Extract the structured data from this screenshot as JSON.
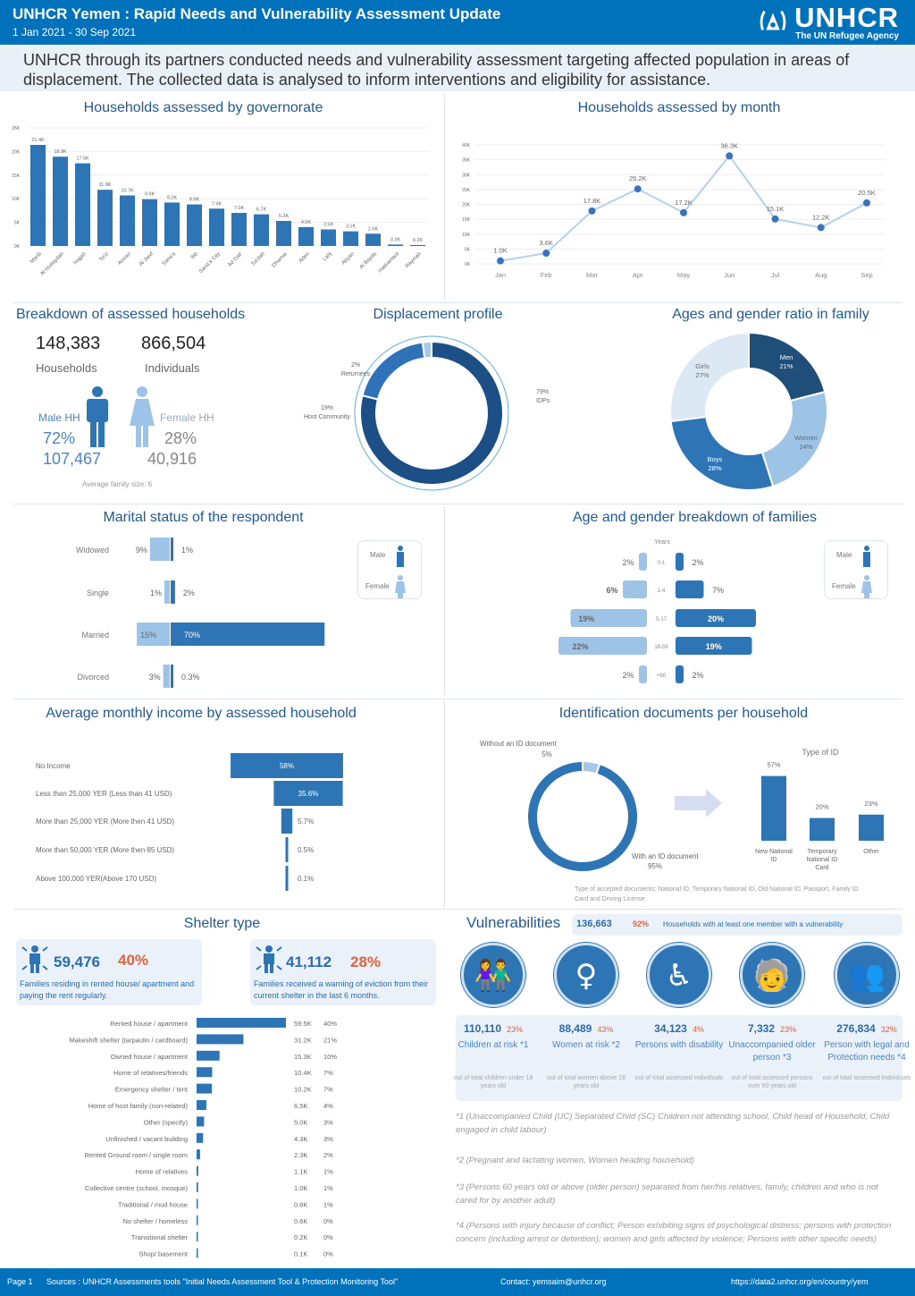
{
  "header": {
    "title": "UNHCR Yemen : Rapid Needs and Vulnerability Assessment Update",
    "date": "1 Jan 2021 - 30 Sep 2021",
    "logo_text": "UNHCR",
    "logo_sub": "The UN Refugee Agency"
  },
  "intro": "UNHCR through its partners conducted needs and vulnerability assessment targeting affected population in areas of displacement. The collected data is analysed to inform interventions and eligibility for assistance.",
  "sections": {
    "gov": "Households assessed by governorate",
    "month": "Households assessed by month",
    "breakdown": "Breakdown of assessed households",
    "displacement": "Displacement profile",
    "ages": "Ages and gender ratio in family",
    "marital": "Marital status of the respondent",
    "agegender": "Age and gender breakdown of families",
    "income": "Average monthly income by assessed household",
    "id": "Identification documents per household",
    "shelter": "Shelter type",
    "vuln": "Vulnerabilities"
  },
  "breakdown": {
    "households": "148,383",
    "households_label": "Households",
    "individuals": "866,504",
    "individuals_label": "Individuals",
    "male_label": "Male HH",
    "male_pct": "72%",
    "male_count": "107,467",
    "female_label": "Female HH",
    "female_pct": "28%",
    "female_count": "40,916",
    "avg_family": "Average family size: 6"
  },
  "legend": {
    "male": "Male",
    "female": "Female"
  },
  "shelter_cards": [
    {
      "num": "59,476",
      "pct": "40%",
      "desc": "Families residing in rented house/ apartment and paying the rent regularly."
    },
    {
      "num": "41,112",
      "pct": "28%",
      "desc": "Families received a warning of eviction from their current shelter in the last 6 months."
    }
  ],
  "vulnerabilities": {
    "total": "136,663",
    "pct": "92%",
    "desc": "Households with at least one member with a vulnerability",
    "items": [
      {
        "icon": "children-icon",
        "num": "110,110",
        "pct": "23%",
        "label": "Children at risk *1",
        "note": "out of total children under 18 years old"
      },
      {
        "icon": "woman-icon",
        "num": "88,489",
        "pct": "43%",
        "label": "Women at risk *2",
        "note": "out of total women above 18 years old"
      },
      {
        "icon": "wheelchair-icon",
        "num": "34,123",
        "pct": "4%",
        "label": "Persons with disability",
        "note": "out of total assessed individuals"
      },
      {
        "icon": "elderly-icon",
        "num": "7,332",
        "pct": "23%",
        "label": "Unaccompanied older person *3",
        "note": "out of total assessed persons over 60 years old"
      },
      {
        "icon": "group-icon",
        "num": "276,834",
        "pct": "32%",
        "label": "Person with legal and Protection needs *4",
        "note": "out of total assessed individuals"
      }
    ],
    "footnotes": [
      "*1 (Unaccompanied Child (UC) Separated Child (SC) Children not attending school, Child head of Household, Child engaged in child labour)",
      "*2 (Pregnant and lactating women, Women heading household)",
      "*3 (Persons 60 years old or above (older person) separated from her/his relatives, family, children and who is not cared for by another adult)",
      "*4 (Persons with injury because of conflict; Person exhibiting signs of psychological distress; persons with protection concern (including arrest or detention); women and girls affected by violence; Persons with other specific needs)"
    ]
  },
  "id_note": "Type of accepted documents: National ID, Temporary National ID, Old National ID, Passport, Family ID Card and Driving License",
  "footer": {
    "page": "Page 1",
    "sources": "Sources : UNHCR Assessments tools \"Initial Needs Assessment Tool & Protection Monitoring Tool\"",
    "contact": "Contact: yemsaim@unhcr.org",
    "url": "https://data2.unhcr.org/en/country/yem"
  },
  "colors": {
    "brand": "#0072BC",
    "bar": "#2e75b6",
    "light": "#9dc3e6",
    "dark": "#1f4e79",
    "accent": "#e8603c"
  },
  "chart_data": [
    {
      "type": "bar",
      "title": "Households assessed by governorate",
      "categories": [
        "Marib",
        "Al Hudaydah",
        "Hajjah",
        "Ta'iz",
        "Amran",
        "Al Jawf",
        "Sana'a",
        "Ibb",
        "Sana'a City",
        "Ad Dali'",
        "Sa'dah",
        "Dhamar",
        "Aden",
        "Lahj",
        "Abyan",
        "Al Bayda",
        "Hadramaut",
        "Raymah"
      ],
      "values": [
        21.4,
        18.9,
        17.5,
        11.9,
        10.7,
        9.9,
        9.2,
        8.8,
        7.9,
        7.0,
        6.7,
        5.3,
        4.0,
        3.5,
        3.1,
        2.6,
        0.3,
        0.2
      ],
      "value_labels": [
        "21.4K",
        "18.9K",
        "17.5K",
        "11.9K",
        "10.7K",
        "9.9K",
        "9.2K",
        "8.8K",
        "7.9K",
        "7.0K",
        "6.7K",
        "5.3K",
        "4.0K",
        "3.5K",
        "3.1K",
        "2.6K",
        "0.3K",
        "0.2K"
      ],
      "yticks": [
        "0K",
        "5K",
        "10K",
        "15K",
        "20K",
        "25K"
      ],
      "ylim": [
        0,
        25
      ],
      "grid": true
    },
    {
      "type": "line",
      "title": "Households assessed by month",
      "categories": [
        "Jan",
        "Feb",
        "Mar",
        "Apr",
        "May",
        "Jun",
        "Jul",
        "Aug",
        "Sep"
      ],
      "values": [
        1.0,
        3.6,
        17.8,
        25.2,
        17.2,
        36.3,
        15.1,
        12.2,
        20.5
      ],
      "value_labels": [
        "1.0K",
        "3.6K",
        "17.8K",
        "25.2K",
        "17.2K",
        "36.3K",
        "15.1K",
        "12.2K",
        "20.5K"
      ],
      "yticks": [
        "0K",
        "5K",
        "10K",
        "15K",
        "20K",
        "25K",
        "30K",
        "35K",
        "40K"
      ],
      "ylim": [
        0,
        40
      ],
      "grid": true
    },
    {
      "type": "pie",
      "title": "Displacement profile",
      "slices": [
        {
          "label": "IDPs",
          "value": 79,
          "color": "#1c4f86"
        },
        {
          "label": "Host Community",
          "value": 19,
          "color": "#2f72b8"
        },
        {
          "label": "Returnees",
          "value": 2,
          "color": "#a9c8e8"
        }
      ]
    },
    {
      "type": "pie",
      "title": "Ages and gender ratio in family",
      "slices": [
        {
          "label": "Men",
          "value": 21,
          "color": "#1f4e79"
        },
        {
          "label": "Women",
          "value": 24,
          "color": "#9dc3e6"
        },
        {
          "label": "Boys",
          "value": 28,
          "color": "#2e75b6"
        },
        {
          "label": "Girls",
          "value": 27,
          "color": "#dce9f5"
        }
      ]
    },
    {
      "type": "bar",
      "title": "Marital status of the respondent",
      "categories": [
        "Widowed",
        "Single",
        "Married",
        "Divorced"
      ],
      "series": [
        {
          "name": "Female",
          "values": [
            9,
            1,
            15,
            3
          ],
          "labels": [
            "9%",
            "1%",
            "15%",
            "3%"
          ]
        },
        {
          "name": "Male",
          "values": [
            1,
            2,
            70,
            0.3
          ],
          "labels": [
            "1%",
            "2%",
            "70%",
            "0.3%"
          ]
        }
      ]
    },
    {
      "type": "bar",
      "title": "Age and gender breakdown of families",
      "axis_title": "Years",
      "categories": [
        "0-1",
        "1-4",
        "5-17",
        "18-59",
        "+60"
      ],
      "series": [
        {
          "name": "Female",
          "values": [
            2,
            6,
            19,
            22,
            2
          ],
          "labels": [
            "2%",
            "6%",
            "19%",
            "22%",
            "2%"
          ]
        },
        {
          "name": "Male",
          "values": [
            2,
            7,
            20,
            19,
            2
          ],
          "labels": [
            "2%",
            "7%",
            "20%",
            "19%",
            "2%"
          ]
        }
      ]
    },
    {
      "type": "bar",
      "title": "Average monthly income by assessed household",
      "categories": [
        "No Income",
        "Less than 25,000 YER (Less than 41 USD)",
        "More than 25,000 YER (More then 41 USD)",
        "More than 50,000 YER (More then 85 USD)",
        "Above 100,000 YER(Above 170 USD)"
      ],
      "values": [
        58,
        35.6,
        5.7,
        0.5,
        0.1
      ],
      "value_labels": [
        "58%",
        "35.6%",
        "5.7%",
        "0.5%",
        "0.1%"
      ]
    },
    {
      "type": "pie",
      "title": "Identification documents per household",
      "slices": [
        {
          "label": "Without an ID document",
          "value": 5,
          "value_label": "5%",
          "color": "#a9c8e8"
        },
        {
          "label": "With an ID document",
          "value": 95,
          "value_label": "95%",
          "color": "#2e75b6"
        }
      ]
    },
    {
      "type": "bar",
      "title": "Type of ID",
      "categories": [
        "New National ID",
        "Temporary National ID Card",
        "Other"
      ],
      "values": [
        57,
        20,
        23
      ],
      "value_labels": [
        "57%",
        "20%",
        "23%"
      ]
    },
    {
      "type": "bar",
      "title": "Shelter type",
      "categories": [
        "Rented house / apartment",
        "Makeshift shelter (tarpaulin / cardboard)",
        "Owned house / apartment",
        "Home of relatives/friends",
        "Emergency shelter / tent",
        "Home of host family (non-related)",
        "Other (specify)",
        "Unfinished / vacant building",
        "Rented Ground room / single room",
        "Home of relatives",
        "Collective centre (school, mosque)",
        "Traditional / mud house",
        "No shelter / homeless",
        "Transitional shelter",
        "Shop/ basement"
      ],
      "values": [
        59.5,
        31.2,
        15.3,
        10.4,
        10.2,
        6.5,
        5.0,
        4.3,
        2.3,
        1.1,
        1.0,
        0.8,
        0.6,
        0.2,
        0.1
      ],
      "value_labels": [
        "59.5K",
        "31.2K",
        "15.3K",
        "10.4K",
        "10.2K",
        "6.5K",
        "5.0K",
        "4.3K",
        "2.3K",
        "1.1K",
        "1.0K",
        "0.8K",
        "0.6K",
        "0.2K",
        "0.1K"
      ],
      "pct_labels": [
        "40%",
        "21%",
        "10%",
        "7%",
        "7%",
        "4%",
        "3%",
        "3%",
        "2%",
        "1%",
        "1%",
        "1%",
        "0%",
        "0%",
        "0%"
      ]
    }
  ]
}
